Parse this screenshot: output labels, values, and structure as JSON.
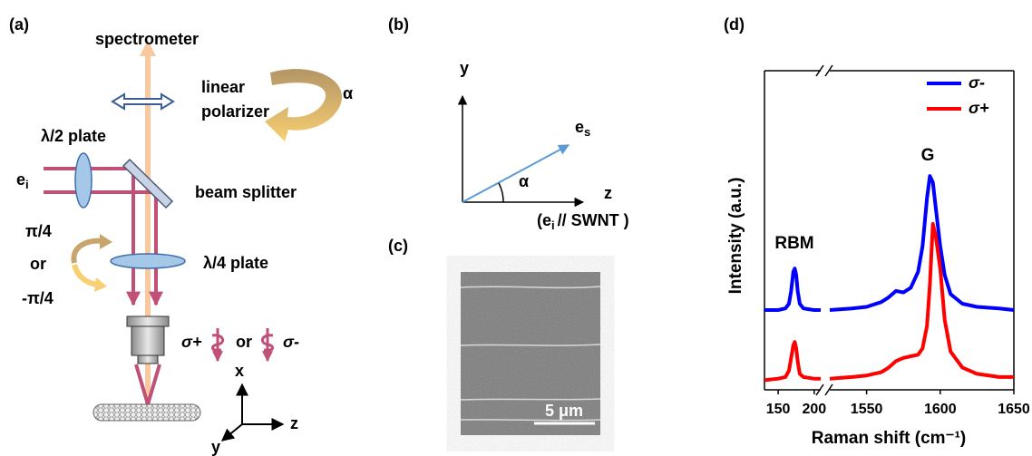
{
  "panel_labels": [
    "(a)",
    "(b)",
    "(c)",
    "(d)"
  ],
  "panel_a": {
    "spectrometer": "spectrometer",
    "polarizer": [
      "linear",
      "polarizer"
    ],
    "alpha": "α",
    "half_wave_plate": "λ/2 plate",
    "input_polarization": {
      "base": "e",
      "sub": "i"
    },
    "beam_splitter": "beam splitter",
    "rotation": [
      "π/4",
      "or",
      "-π/4"
    ],
    "quarter_wave_plate": "λ/4 plate",
    "helicity": [
      "σ+",
      "or",
      "σ-"
    ],
    "axes": {
      "x": "x",
      "y": "y",
      "z": "z"
    }
  },
  "panel_b": {
    "axes": {
      "y": "y",
      "z": "z"
    },
    "alpha": "α",
    "scattered": {
      "base": "e",
      "sub": "s"
    },
    "z_note": {
      "open": "(e",
      "sub": "i",
      "close": "// SWNT )"
    }
  },
  "panel_c": {
    "scale_bar": "5 μm"
  },
  "chart_data": {
    "type": "line",
    "x_label": "Raman shift (cm⁻¹)",
    "y_label": "Intensity (a.u.)",
    "annotations": [
      "RBM",
      "G"
    ],
    "legend": "upper right",
    "xlim": [
      131,
      1650
    ],
    "xbreak": [
      209,
      1525
    ],
    "xticks": [
      150,
      200,
      1550,
      1600,
      1650
    ],
    "ylim": [
      0,
      1
    ],
    "x": [
      131,
      150,
      160,
      165,
      168,
      171,
      173,
      175,
      177,
      180,
      185,
      200,
      209,
      1525,
      1540,
      1550,
      1560,
      1565,
      1570,
      1575,
      1580,
      1585,
      1588,
      1591,
      1593,
      1595,
      1597,
      1600,
      1603,
      1607,
      1615,
      1625,
      1640,
      1650
    ],
    "series": [
      {
        "name": "σ-",
        "color": "#0000ff",
        "values": [
          0.25,
          0.25,
          0.255,
          0.27,
          0.31,
          0.37,
          0.38,
          0.36,
          0.31,
          0.27,
          0.255,
          0.25,
          0.25,
          0.25,
          0.255,
          0.26,
          0.275,
          0.29,
          0.31,
          0.305,
          0.32,
          0.37,
          0.45,
          0.6,
          0.67,
          0.65,
          0.57,
          0.45,
          0.36,
          0.3,
          0.27,
          0.26,
          0.255,
          0.25
        ]
      },
      {
        "name": "σ+",
        "color": "#ff0000",
        "values": [
          0.03,
          0.035,
          0.04,
          0.06,
          0.1,
          0.14,
          0.15,
          0.13,
          0.09,
          0.05,
          0.04,
          0.035,
          0.035,
          0.035,
          0.04,
          0.045,
          0.055,
          0.07,
          0.09,
          0.1,
          0.105,
          0.11,
          0.13,
          0.2,
          0.33,
          0.52,
          0.48,
          0.38,
          0.22,
          0.12,
          0.07,
          0.05,
          0.04,
          0.04
        ]
      }
    ]
  }
}
